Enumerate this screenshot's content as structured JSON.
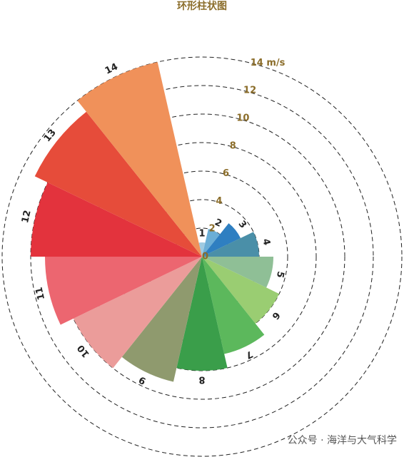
{
  "chart_data": {
    "type": "polar-bar",
    "title": "环形柱状图",
    "categories": [
      "1",
      "2",
      "3",
      "4",
      "5",
      "6",
      "7",
      "8",
      "9",
      "10",
      "11",
      "12",
      "13",
      "14"
    ],
    "values": [
      1,
      2,
      3,
      4,
      5,
      6,
      7,
      8,
      9,
      10,
      11,
      12,
      13,
      14
    ],
    "colors": [
      "#9ecae1",
      "#6baed6",
      "#2f7fc1",
      "#4a8fa8",
      "#8fbf96",
      "#9acd72",
      "#5cb85c",
      "#3a9e4a",
      "#8f9a6e",
      "#eb9c9a",
      "#ec6670",
      "#e3333d",
      "#e64c3a",
      "#f0915a"
    ],
    "ylim": [
      0,
      14
    ],
    "yticks": [
      0,
      2,
      4,
      6,
      8,
      10,
      12,
      {
        "value": 14,
        "label": "14 m/s"
      }
    ],
    "grid": true,
    "watermark": "公众号 · 海洋与大气科学"
  }
}
